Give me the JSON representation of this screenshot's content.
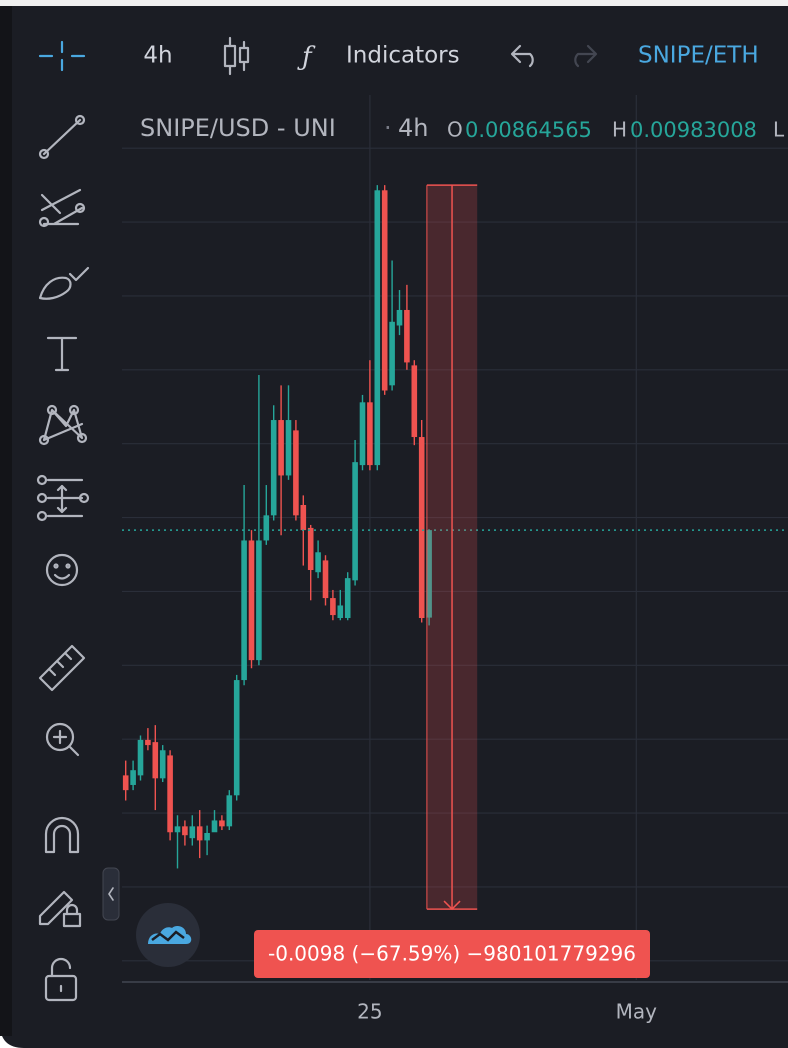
{
  "toolbar": {
    "interval": "4h",
    "indicators": "Indicators",
    "compare_symbol": "SNIPE/ETH"
  },
  "legend": {
    "symbol": "SNIPE/USD - UNI",
    "interval": "4h",
    "open_label": "O",
    "high_label": "H",
    "low_label": "L"
  },
  "chart_data": {
    "type": "candlestick",
    "x": [
      1,
      2,
      3,
      4,
      5,
      6,
      7,
      8,
      9,
      10,
      11,
      12,
      13,
      14,
      15,
      16,
      17,
      18,
      19,
      20,
      21,
      22,
      23,
      24,
      25,
      26,
      27,
      28,
      29,
      30,
      31,
      32,
      33,
      34,
      35,
      36,
      37,
      38,
      39,
      40,
      41,
      42
    ],
    "open": [
      0.00651,
      0.00638,
      0.00651,
      0.00699,
      0.00696,
      0.00647,
      0.00678,
      0.00574,
      0.00582,
      0.00566,
      0.00582,
      0.00563,
      0.00574,
      0.0059,
      0.00582,
      0.00624,
      0.0078,
      0.00969,
      0.00807,
      0.00969,
      0.01003,
      0.01132,
      0.01057,
      0.01118,
      0.01017,
      0.00986,
      0.00926,
      0.00942,
      0.00891,
      0.00864,
      0.00864,
      0.00915,
      0.01071,
      0.01156,
      0.01071,
      0.01443,
      0.01179,
      0.0126,
      0.01281,
      0.01206,
      0.01109,
      0.00864565
    ],
    "high": [
      0.00671,
      0.00671,
      0.00705,
      0.00715,
      0.00719,
      0.00692,
      0.00685,
      0.00597,
      0.0059,
      0.00597,
      0.00604,
      0.00583,
      0.00604,
      0.00597,
      0.00631,
      0.00787,
      0.01044,
      0.00983,
      0.01193,
      0.01044,
      0.01152,
      0.01179,
      0.01179,
      0.01132,
      0.0103,
      0.0099,
      0.00969,
      0.00949,
      0.00902,
      0.00902,
      0.00926,
      0.01105,
      0.01166,
      0.01213,
      0.0145,
      0.0145,
      0.01348,
      0.01308,
      0.01315,
      0.01213,
      0.01132,
      0.00983008
    ],
    "low": [
      0.00617,
      0.00631,
      0.00644,
      0.00685,
      0.00604,
      0.00642,
      0.00563,
      0.00525,
      0.00556,
      0.00556,
      0.00539,
      0.00543,
      0.00577,
      0.00577,
      0.00577,
      0.00617,
      0.00773,
      0.00796,
      0.008,
      0.00963,
      0.00996,
      0.00976,
      0.01051,
      0.00996,
      0.00935,
      0.00888,
      0.00918,
      0.00881,
      0.00861,
      0.00861,
      0.00861,
      0.00908,
      0.01064,
      0.01064,
      0.01064,
      0.01166,
      0.01172,
      0.01247,
      0.012,
      0.01098,
      0.00858,
      0.00854
    ],
    "close": [
      0.00631,
      0.00658,
      0.00699,
      0.00692,
      0.00647,
      0.00685,
      0.00574,
      0.00582,
      0.0057,
      0.00582,
      0.00563,
      0.00573,
      0.0059,
      0.00582,
      0.00624,
      0.0078,
      0.00969,
      0.00807,
      0.00969,
      0.01003,
      0.01132,
      0.01057,
      0.01132,
      0.01003,
      0.00983,
      0.00929,
      0.00953,
      0.00891,
      0.00868,
      0.00881,
      0.00918,
      0.01075,
      0.01156,
      0.01071,
      0.01443,
      0.01172,
      0.01265,
      0.01281,
      0.0121,
      0.01109,
      0.00864,
      0.00983
    ],
    "up_color": "#26a69a",
    "down_color": "#ef5350",
    "xlim": [
      0.5,
      90.5
    ],
    "xticks": [
      {
        "value": 34,
        "label": "25"
      },
      {
        "value": 70,
        "label": "May"
      }
    ],
    "ylim": [
      0.00374,
      0.01572
    ],
    "ygrid": [
      0.004,
      0.005,
      0.006,
      0.007,
      0.008,
      0.009,
      0.01,
      0.011,
      0.012,
      0.013,
      0.014,
      0.015
    ],
    "measure": {
      "label": "-0.0098 (−67.59%) −980101779296",
      "from": 0.0145,
      "to": 0.0047,
      "x": [
        41.7,
        48.5
      ],
      "color": "#ef5350"
    }
  }
}
